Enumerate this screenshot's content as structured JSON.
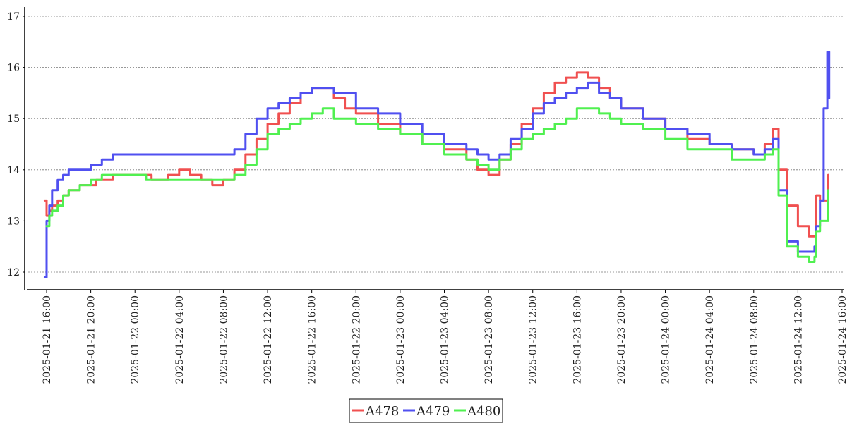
{
  "chart_data": {
    "type": "line",
    "title": "",
    "xlabel": "",
    "ylabel": "",
    "ylim": [
      11.6,
      17.1
    ],
    "xlim": [
      "2025-01-21 15:05",
      "2025-01-24 16:10"
    ],
    "grid": {
      "y": true,
      "x": false
    },
    "legend": {
      "placement": "bottom-center"
    },
    "y_ticks": [
      "12",
      "13",
      "14",
      "15",
      "16",
      "17"
    ],
    "x_ticks": [
      {
        "t": "2025-01-21 16:00",
        "label": "2025-01-21  16:00"
      },
      {
        "t": "2025-01-21 20:00",
        "label": "2025-01-21  20:00"
      },
      {
        "t": "2025-01-22 00:00",
        "label": "2025-01-22  00:00"
      },
      {
        "t": "2025-01-22 04:00",
        "label": "2025-01-22  04:00"
      },
      {
        "t": "2025-01-22 08:00",
        "label": "2025-01-22  08:00"
      },
      {
        "t": "2025-01-22 12:00",
        "label": "2025-01-22  12:00"
      },
      {
        "t": "2025-01-22 16:00",
        "label": "2025-01-22  16:00"
      },
      {
        "t": "2025-01-22 20:00",
        "label": "2025-01-22  20:00"
      },
      {
        "t": "2025-01-23 00:00",
        "label": "2025-01-23  00:00"
      },
      {
        "t": "2025-01-23 04:00",
        "label": "2025-01-23  04:00"
      },
      {
        "t": "2025-01-23 08:00",
        "label": "2025-01-23  08:00"
      },
      {
        "t": "2025-01-23 12:00",
        "label": "2025-01-23  12:00"
      },
      {
        "t": "2025-01-23 16:00",
        "label": "2025-01-23  16:00"
      },
      {
        "t": "2025-01-23 20:00",
        "label": "2025-01-23  20:00"
      },
      {
        "t": "2025-01-24 00:00",
        "label": "2025-01-24  00:00"
      },
      {
        "t": "2025-01-24 04:00",
        "label": "2025-01-24  04:00"
      },
      {
        "t": "2025-01-24 08:00",
        "label": "2025-01-24  08:00"
      },
      {
        "t": "2025-01-24 12:00",
        "label": "2025-01-24  12:00"
      },
      {
        "t": "2025-01-24 16:00",
        "label": "2025-01-24  16:00"
      }
    ],
    "series": [
      {
        "name": "A478",
        "color": "#f05050",
        "points": [
          [
            "2025-01-21 15:50",
            13.4
          ],
          [
            "2025-01-21 16:00",
            13.1
          ],
          [
            "2025-01-21 16:15",
            13.2
          ],
          [
            "2025-01-21 16:30",
            13.3
          ],
          [
            "2025-01-21 17:00",
            13.4
          ],
          [
            "2025-01-21 17:30",
            13.5
          ],
          [
            "2025-01-21 18:00",
            13.6
          ],
          [
            "2025-01-21 19:00",
            13.7
          ],
          [
            "2025-01-21 20:30",
            13.8
          ],
          [
            "2025-01-21 22:00",
            13.9
          ],
          [
            "2025-01-22 01:00",
            13.9
          ],
          [
            "2025-01-22 01:30",
            13.8
          ],
          [
            "2025-01-22 03:00",
            13.9
          ],
          [
            "2025-01-22 04:00",
            14.0
          ],
          [
            "2025-01-22 05:00",
            13.9
          ],
          [
            "2025-01-22 06:00",
            13.8
          ],
          [
            "2025-01-22 07:00",
            13.7
          ],
          [
            "2025-01-22 08:00",
            13.8
          ],
          [
            "2025-01-22 09:00",
            14.0
          ],
          [
            "2025-01-22 10:00",
            14.3
          ],
          [
            "2025-01-22 11:00",
            14.6
          ],
          [
            "2025-01-22 12:00",
            14.9
          ],
          [
            "2025-01-22 13:00",
            15.1
          ],
          [
            "2025-01-22 14:00",
            15.3
          ],
          [
            "2025-01-22 15:00",
            15.5
          ],
          [
            "2025-01-22 16:00",
            15.6
          ],
          [
            "2025-01-22 17:00",
            15.6
          ],
          [
            "2025-01-22 18:00",
            15.4
          ],
          [
            "2025-01-22 19:00",
            15.2
          ],
          [
            "2025-01-22 20:00",
            15.1
          ],
          [
            "2025-01-22 22:00",
            14.9
          ],
          [
            "2025-01-23 00:00",
            14.7
          ],
          [
            "2025-01-23 02:00",
            14.5
          ],
          [
            "2025-01-23 04:00",
            14.4
          ],
          [
            "2025-01-23 06:00",
            14.2
          ],
          [
            "2025-01-23 07:00",
            14.0
          ],
          [
            "2025-01-23 08:00",
            13.9
          ],
          [
            "2025-01-23 09:00",
            14.2
          ],
          [
            "2025-01-23 10:00",
            14.5
          ],
          [
            "2025-01-23 11:00",
            14.9
          ],
          [
            "2025-01-23 12:00",
            15.2
          ],
          [
            "2025-01-23 13:00",
            15.5
          ],
          [
            "2025-01-23 14:00",
            15.7
          ],
          [
            "2025-01-23 15:00",
            15.8
          ],
          [
            "2025-01-23 16:00",
            15.9
          ],
          [
            "2025-01-23 17:00",
            15.8
          ],
          [
            "2025-01-23 18:00",
            15.6
          ],
          [
            "2025-01-23 19:00",
            15.4
          ],
          [
            "2025-01-23 20:00",
            15.2
          ],
          [
            "2025-01-23 22:00",
            15.0
          ],
          [
            "2025-01-24 00:00",
            14.8
          ],
          [
            "2025-01-24 02:00",
            14.6
          ],
          [
            "2025-01-24 04:00",
            14.5
          ],
          [
            "2025-01-24 06:00",
            14.4
          ],
          [
            "2025-01-24 08:00",
            14.3
          ],
          [
            "2025-01-24 09:00",
            14.5
          ],
          [
            "2025-01-24 09:45",
            14.8
          ],
          [
            "2025-01-24 10:15",
            14.0
          ],
          [
            "2025-01-24 11:00",
            13.3
          ],
          [
            "2025-01-24 12:00",
            12.9
          ],
          [
            "2025-01-24 13:00",
            12.7
          ],
          [
            "2025-01-24 13:30",
            12.7
          ],
          [
            "2025-01-24 13:40",
            13.5
          ],
          [
            "2025-01-24 14:00",
            13.4
          ],
          [
            "2025-01-24 14:45",
            13.9
          ]
        ]
      },
      {
        "name": "A479",
        "color": "#5050f0",
        "points": [
          [
            "2025-01-21 15:50",
            11.9
          ],
          [
            "2025-01-21 16:00",
            13.0
          ],
          [
            "2025-01-21 16:15",
            13.3
          ],
          [
            "2025-01-21 16:30",
            13.6
          ],
          [
            "2025-01-21 17:00",
            13.8
          ],
          [
            "2025-01-21 17:30",
            13.9
          ],
          [
            "2025-01-21 18:00",
            14.0
          ],
          [
            "2025-01-21 19:00",
            14.0
          ],
          [
            "2025-01-21 20:00",
            14.1
          ],
          [
            "2025-01-21 21:00",
            14.2
          ],
          [
            "2025-01-21 22:00",
            14.3
          ],
          [
            "2025-01-22 08:00",
            14.3
          ],
          [
            "2025-01-22 09:00",
            14.4
          ],
          [
            "2025-01-22 10:00",
            14.7
          ],
          [
            "2025-01-22 11:00",
            15.0
          ],
          [
            "2025-01-22 12:00",
            15.2
          ],
          [
            "2025-01-22 13:00",
            15.3
          ],
          [
            "2025-01-22 14:00",
            15.4
          ],
          [
            "2025-01-22 15:00",
            15.5
          ],
          [
            "2025-01-22 16:00",
            15.6
          ],
          [
            "2025-01-22 18:00",
            15.5
          ],
          [
            "2025-01-22 20:00",
            15.2
          ],
          [
            "2025-01-22 22:00",
            15.1
          ],
          [
            "2025-01-23 00:00",
            14.9
          ],
          [
            "2025-01-23 02:00",
            14.7
          ],
          [
            "2025-01-23 04:00",
            14.5
          ],
          [
            "2025-01-23 06:00",
            14.4
          ],
          [
            "2025-01-23 07:00",
            14.3
          ],
          [
            "2025-01-23 08:00",
            14.2
          ],
          [
            "2025-01-23 09:00",
            14.3
          ],
          [
            "2025-01-23 10:00",
            14.6
          ],
          [
            "2025-01-23 11:00",
            14.8
          ],
          [
            "2025-01-23 12:00",
            15.1
          ],
          [
            "2025-01-23 13:00",
            15.3
          ],
          [
            "2025-01-23 14:00",
            15.4
          ],
          [
            "2025-01-23 15:00",
            15.5
          ],
          [
            "2025-01-23 16:00",
            15.6
          ],
          [
            "2025-01-23 17:00",
            15.7
          ],
          [
            "2025-01-23 18:00",
            15.5
          ],
          [
            "2025-01-23 19:00",
            15.4
          ],
          [
            "2025-01-23 20:00",
            15.2
          ],
          [
            "2025-01-23 22:00",
            15.0
          ],
          [
            "2025-01-24 00:00",
            14.8
          ],
          [
            "2025-01-24 02:00",
            14.7
          ],
          [
            "2025-01-24 04:00",
            14.5
          ],
          [
            "2025-01-24 06:00",
            14.4
          ],
          [
            "2025-01-24 08:00",
            14.3
          ],
          [
            "2025-01-24 09:00",
            14.4
          ],
          [
            "2025-01-24 09:45",
            14.6
          ],
          [
            "2025-01-24 10:15",
            13.6
          ],
          [
            "2025-01-24 11:00",
            12.6
          ],
          [
            "2025-01-24 12:00",
            12.4
          ],
          [
            "2025-01-24 13:00",
            12.4
          ],
          [
            "2025-01-24 13:30",
            12.5
          ],
          [
            "2025-01-24 13:40",
            12.9
          ],
          [
            "2025-01-24 14:00",
            13.4
          ],
          [
            "2025-01-24 14:20",
            15.2
          ],
          [
            "2025-01-24 14:40",
            16.3
          ],
          [
            "2025-01-24 14:50",
            15.4
          ]
        ]
      },
      {
        "name": "A480",
        "color": "#50f050",
        "points": [
          [
            "2025-01-21 16:00",
            12.9
          ],
          [
            "2025-01-21 16:15",
            13.1
          ],
          [
            "2025-01-21 16:30",
            13.2
          ],
          [
            "2025-01-21 17:00",
            13.3
          ],
          [
            "2025-01-21 17:30",
            13.5
          ],
          [
            "2025-01-21 18:00",
            13.6
          ],
          [
            "2025-01-21 19:00",
            13.7
          ],
          [
            "2025-01-21 20:00",
            13.8
          ],
          [
            "2025-01-21 21:00",
            13.9
          ],
          [
            "2025-01-22 00:00",
            13.9
          ],
          [
            "2025-01-22 01:00",
            13.8
          ],
          [
            "2025-01-22 03:00",
            13.8
          ],
          [
            "2025-01-22 05:00",
            13.8
          ],
          [
            "2025-01-22 08:00",
            13.8
          ],
          [
            "2025-01-22 09:00",
            13.9
          ],
          [
            "2025-01-22 10:00",
            14.1
          ],
          [
            "2025-01-22 11:00",
            14.4
          ],
          [
            "2025-01-22 12:00",
            14.7
          ],
          [
            "2025-01-22 13:00",
            14.8
          ],
          [
            "2025-01-22 14:00",
            14.9
          ],
          [
            "2025-01-22 15:00",
            15.0
          ],
          [
            "2025-01-22 16:00",
            15.1
          ],
          [
            "2025-01-22 17:00",
            15.2
          ],
          [
            "2025-01-22 18:00",
            15.0
          ],
          [
            "2025-01-22 20:00",
            14.9
          ],
          [
            "2025-01-22 22:00",
            14.8
          ],
          [
            "2025-01-23 00:00",
            14.7
          ],
          [
            "2025-01-23 02:00",
            14.5
          ],
          [
            "2025-01-23 04:00",
            14.3
          ],
          [
            "2025-01-23 06:00",
            14.2
          ],
          [
            "2025-01-23 07:00",
            14.1
          ],
          [
            "2025-01-23 08:00",
            14.0
          ],
          [
            "2025-01-23 09:00",
            14.2
          ],
          [
            "2025-01-23 10:00",
            14.4
          ],
          [
            "2025-01-23 11:00",
            14.6
          ],
          [
            "2025-01-23 12:00",
            14.7
          ],
          [
            "2025-01-23 13:00",
            14.8
          ],
          [
            "2025-01-23 14:00",
            14.9
          ],
          [
            "2025-01-23 15:00",
            15.0
          ],
          [
            "2025-01-23 16:00",
            15.2
          ],
          [
            "2025-01-23 17:00",
            15.2
          ],
          [
            "2025-01-23 18:00",
            15.1
          ],
          [
            "2025-01-23 19:00",
            15.0
          ],
          [
            "2025-01-23 20:00",
            14.9
          ],
          [
            "2025-01-23 22:00",
            14.8
          ],
          [
            "2025-01-24 00:00",
            14.6
          ],
          [
            "2025-01-24 02:00",
            14.4
          ],
          [
            "2025-01-24 04:00",
            14.4
          ],
          [
            "2025-01-24 06:00",
            14.2
          ],
          [
            "2025-01-24 08:00",
            14.2
          ],
          [
            "2025-01-24 09:00",
            14.3
          ],
          [
            "2025-01-24 09:45",
            14.4
          ],
          [
            "2025-01-24 10:15",
            13.5
          ],
          [
            "2025-01-24 11:00",
            12.5
          ],
          [
            "2025-01-24 12:00",
            12.3
          ],
          [
            "2025-01-24 13:00",
            12.2
          ],
          [
            "2025-01-24 13:30",
            12.3
          ],
          [
            "2025-01-24 13:40",
            12.8
          ],
          [
            "2025-01-24 14:00",
            13.0
          ],
          [
            "2025-01-24 14:45",
            13.6
          ]
        ]
      }
    ]
  }
}
